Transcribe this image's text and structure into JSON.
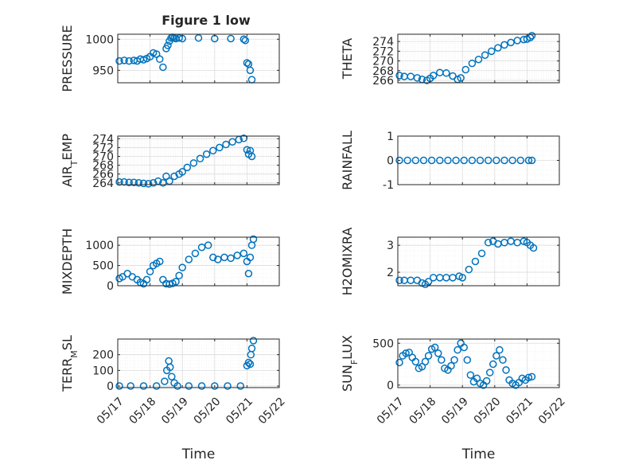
{
  "figure": {
    "title": "Figure 1 low"
  },
  "colors": {
    "marker": "#0072BD",
    "axis": "#262626",
    "grid": "#dcdcdc",
    "minorGrid": "#ececec"
  },
  "chart_data": [
    {
      "type": "scatter",
      "title": "Figure 1 low",
      "ylabel": "PRESSURE",
      "xlabel": "",
      "xlim": [
        17,
        22
      ],
      "ylim": [
        930,
        1008
      ],
      "yticks": [
        950,
        1000
      ],
      "ytick_labels": [
        "950",
        "1000"
      ],
      "xticks": [
        17,
        18,
        19,
        20,
        21,
        22
      ],
      "xtick_labels": [],
      "grid": true,
      "minor_grid": true,
      "series": [
        {
          "x": [
            17.05,
            17.2,
            17.35,
            17.5,
            17.6,
            17.7,
            17.8,
            17.9,
            18.0,
            18.1,
            18.2,
            18.3,
            18.4,
            18.5,
            18.55,
            18.6,
            18.65,
            18.7,
            18.75,
            18.8,
            18.9,
            19.0,
            19.5,
            20.0,
            20.5,
            20.9,
            20.95,
            21.0,
            21.05,
            21.1,
            21.15
          ],
          "y": [
            965,
            966,
            965,
            966,
            965,
            968,
            967,
            969,
            972,
            978,
            976,
            968,
            955,
            985,
            990,
            997,
            1002,
            1003,
            1002,
            1001,
            1002,
            1001,
            1002,
            1001,
            1001,
            1000,
            998,
            962,
            960,
            950,
            935
          ]
        }
      ]
    },
    {
      "type": "scatter",
      "ylabel": "THETA",
      "xlabel": "",
      "xlim": [
        17,
        22
      ],
      "ylim": [
        265.5,
        275.5
      ],
      "yticks": [
        266,
        268,
        270,
        272,
        274
      ],
      "ytick_labels": [
        "266",
        "268",
        "270",
        "272",
        "274"
      ],
      "xticks": [
        17,
        18,
        19,
        20,
        21,
        22
      ],
      "xtick_labels": [],
      "grid": true,
      "minor_grid": true,
      "series": [
        {
          "x": [
            17.05,
            17.2,
            17.4,
            17.6,
            17.75,
            17.9,
            18.0,
            18.1,
            18.3,
            18.5,
            18.7,
            18.85,
            18.95,
            19.1,
            19.3,
            19.5,
            19.7,
            19.9,
            20.1,
            20.3,
            20.5,
            20.7,
            20.9,
            21.0,
            21.1,
            21.15
          ],
          "y": [
            267,
            266.8,
            266.8,
            266.5,
            266.2,
            266,
            266.4,
            267,
            267.6,
            267.5,
            266.9,
            266.2,
            266.5,
            268.2,
            269.5,
            270.3,
            271.2,
            272,
            272.7,
            273.3,
            273.8,
            274.2,
            274.4,
            274.5,
            274.8,
            275.2
          ]
        }
      ]
    },
    {
      "type": "scatter",
      "ylabel": "AIR_TEMP",
      "xlabel": "",
      "xlim": [
        17,
        22
      ],
      "ylim": [
        263.6,
        274.6
      ],
      "yticks": [
        264,
        266,
        268,
        270,
        272,
        274
      ],
      "ytick_labels": [
        "264",
        "266",
        "268",
        "270",
        "272",
        "274"
      ],
      "xticks": [
        17,
        18,
        19,
        20,
        21,
        22
      ],
      "xtick_labels": [],
      "grid": true,
      "minor_grid": true,
      "series": [
        {
          "x": [
            17.05,
            17.2,
            17.35,
            17.5,
            17.65,
            17.8,
            17.95,
            18.1,
            18.25,
            18.4,
            18.5,
            18.6,
            18.75,
            18.9,
            19.0,
            19.15,
            19.35,
            19.55,
            19.75,
            19.95,
            20.15,
            20.35,
            20.55,
            20.75,
            20.9,
            21.0,
            21.05,
            21.1,
            21.15
          ],
          "y": [
            264.2,
            264.2,
            264.1,
            264.1,
            264.0,
            263.9,
            263.8,
            264.0,
            264.4,
            264.0,
            265.5,
            264.4,
            265.5,
            266.0,
            266.5,
            267.5,
            268.5,
            269.5,
            270.5,
            271.3,
            272.0,
            272.7,
            273.3,
            273.8,
            274.1,
            271.5,
            270.5,
            271.3,
            270.0
          ]
        }
      ]
    },
    {
      "type": "scatter",
      "ylabel": "RAINFALL",
      "xlabel": "",
      "xlim": [
        17,
        22
      ],
      "ylim": [
        -1,
        1
      ],
      "yticks": [
        -1,
        0,
        1
      ],
      "ytick_labels": [
        "-1",
        "0",
        "1"
      ],
      "xticks": [
        17,
        18,
        19,
        20,
        21,
        22
      ],
      "xtick_labels": [],
      "grid": true,
      "minor_grid": true,
      "series": [
        {
          "x": [
            17.05,
            17.3,
            17.55,
            17.8,
            18.05,
            18.3,
            18.55,
            18.8,
            19.05,
            19.3,
            19.55,
            19.8,
            20.05,
            20.3,
            20.55,
            20.8,
            21.05,
            21.15
          ],
          "y": [
            0,
            0,
            0,
            0,
            0,
            0,
            0,
            0,
            0,
            0,
            0,
            0,
            0,
            0,
            0,
            0,
            0,
            0
          ]
        }
      ]
    },
    {
      "type": "scatter",
      "ylabel": "MIXDEPTH",
      "xlabel": "",
      "xlim": [
        17,
        22
      ],
      "ylim": [
        0,
        1200
      ],
      "yticks": [
        0,
        500,
        1000
      ],
      "ytick_labels": [
        "0",
        "500",
        "1000"
      ],
      "xticks": [
        17,
        18,
        19,
        20,
        21,
        22
      ],
      "xtick_labels": [],
      "grid": true,
      "minor_grid": true,
      "series": [
        {
          "x": [
            17.05,
            17.15,
            17.3,
            17.45,
            17.6,
            17.7,
            17.8,
            17.9,
            18.0,
            18.1,
            18.2,
            18.3,
            18.4,
            18.5,
            18.6,
            18.7,
            18.8,
            18.9,
            19.0,
            19.2,
            19.4,
            19.6,
            19.8,
            19.95,
            20.1,
            20.3,
            20.5,
            20.7,
            20.9,
            21.0,
            21.05,
            21.1,
            21.15,
            21.2
          ],
          "y": [
            180,
            220,
            300,
            220,
            150,
            80,
            50,
            150,
            350,
            500,
            550,
            600,
            150,
            50,
            40,
            60,
            100,
            250,
            450,
            650,
            800,
            950,
            1000,
            700,
            650,
            700,
            680,
            750,
            800,
            600,
            300,
            700,
            1000,
            1150
          ]
        }
      ]
    },
    {
      "type": "scatter",
      "ylabel": "H2OMIXRA",
      "xlabel": "",
      "xlim": [
        17,
        22
      ],
      "ylim": [
        1.5,
        3.3
      ],
      "yticks": [
        2,
        3
      ],
      "ytick_labels": [
        "2",
        "3"
      ],
      "xticks": [
        17,
        18,
        19,
        20,
        21,
        22
      ],
      "xtick_labels": [],
      "grid": true,
      "minor_grid": true,
      "series": [
        {
          "x": [
            17.05,
            17.2,
            17.4,
            17.6,
            17.75,
            17.85,
            17.95,
            18.1,
            18.3,
            18.5,
            18.7,
            18.9,
            19.0,
            19.2,
            19.4,
            19.6,
            19.8,
            19.95,
            20.1,
            20.3,
            20.5,
            20.7,
            20.9,
            21.0,
            21.1,
            21.2
          ],
          "y": [
            1.7,
            1.7,
            1.7,
            1.7,
            1.6,
            1.55,
            1.65,
            1.8,
            1.8,
            1.8,
            1.8,
            1.85,
            1.8,
            2.1,
            2.4,
            2.7,
            3.1,
            3.15,
            3.05,
            3.1,
            3.15,
            3.1,
            3.15,
            3.1,
            3.0,
            2.9
          ]
        }
      ]
    },
    {
      "type": "scatter",
      "ylabel": "TERR_MSL",
      "xlabel": "Time",
      "xlim": [
        17,
        22
      ],
      "ylim": [
        -10,
        300
      ],
      "yticks": [
        0,
        100,
        200
      ],
      "ytick_labels": [
        "0",
        "100",
        "200"
      ],
      "xticks": [
        17,
        18,
        19,
        20,
        21,
        22
      ],
      "xtick_labels": [
        "05/17",
        "05/18",
        "05/19",
        "05/20",
        "05/21",
        "05/22"
      ],
      "grid": true,
      "minor_grid": true,
      "series": [
        {
          "x": [
            17.05,
            17.4,
            17.8,
            18.2,
            18.45,
            18.52,
            18.58,
            18.62,
            18.67,
            18.75,
            18.85,
            19.2,
            19.6,
            20.0,
            20.4,
            20.8,
            21.0,
            21.05,
            21.1,
            21.12,
            21.15,
            21.2
          ],
          "y": [
            0,
            0,
            0,
            0,
            30,
            100,
            160,
            120,
            60,
            20,
            0,
            0,
            0,
            0,
            0,
            0,
            130,
            150,
            140,
            200,
            240,
            290
          ]
        }
      ]
    },
    {
      "type": "scatter",
      "ylabel": "SUN_FLUX",
      "xlabel": "Time",
      "xlim": [
        17,
        22
      ],
      "ylim": [
        -30,
        550
      ],
      "yticks": [
        0,
        500
      ],
      "ytick_labels": [
        "0",
        "500"
      ],
      "xticks": [
        17,
        18,
        19,
        20,
        21,
        22
      ],
      "xtick_labels": [
        "05/17",
        "05/18",
        "05/19",
        "05/20",
        "05/21",
        "05/22"
      ],
      "grid": true,
      "minor_grid": true,
      "series": [
        {
          "x": [
            17.05,
            17.15,
            17.25,
            17.35,
            17.45,
            17.55,
            17.65,
            17.75,
            17.85,
            17.95,
            18.05,
            18.15,
            18.25,
            18.35,
            18.45,
            18.55,
            18.65,
            18.75,
            18.85,
            18.95,
            19.05,
            19.15,
            19.25,
            19.35,
            19.45,
            19.55,
            19.65,
            19.75,
            19.85,
            19.95,
            20.05,
            20.15,
            20.25,
            20.35,
            20.45,
            20.55,
            20.65,
            20.75,
            20.85,
            20.95,
            21.05,
            21.15
          ],
          "y": [
            270,
            350,
            380,
            390,
            330,
            280,
            200,
            220,
            280,
            350,
            430,
            450,
            380,
            300,
            200,
            180,
            230,
            300,
            420,
            500,
            450,
            300,
            120,
            40,
            80,
            20,
            0,
            50,
            150,
            250,
            350,
            420,
            300,
            180,
            60,
            20,
            0,
            30,
            80,
            60,
            90,
            100
          ]
        }
      ]
    }
  ]
}
